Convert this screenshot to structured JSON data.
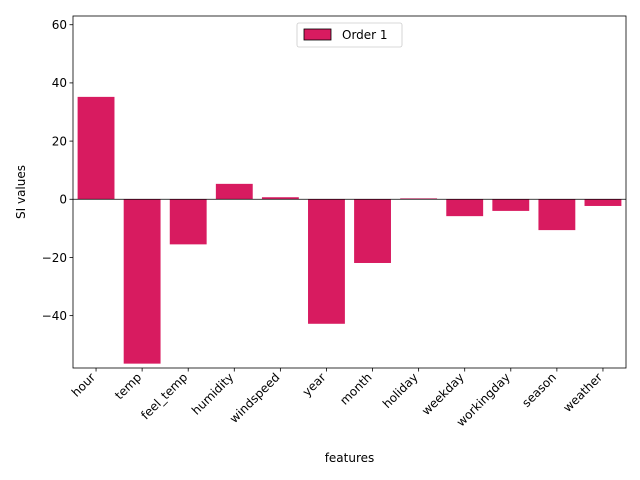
{
  "chart_data": {
    "type": "bar",
    "title": "",
    "xlabel": "features",
    "ylabel": "SI values",
    "categories": [
      "hour",
      "temp",
      "feel_temp",
      "humidity",
      "windspeed",
      "year",
      "month",
      "holiday",
      "weekday",
      "workingday",
      "season",
      "weather"
    ],
    "series": [
      {
        "name": "Order 1",
        "values": [
          35.2,
          -56.5,
          -15.5,
          5.3,
          0.7,
          -42.8,
          -21.9,
          0.3,
          -5.8,
          -4.0,
          -10.6,
          -2.3
        ]
      }
    ],
    "ylim": [
      -58,
      63
    ],
    "yticks": [
      -40,
      -20,
      0,
      20,
      40,
      60
    ],
    "ytick_labels": [
      "−40",
      "−20",
      "0",
      "20",
      "40",
      "60"
    ],
    "grid": false,
    "legend": "top-center",
    "colors": {
      "bar": "#d81b60",
      "zero_line": "#000000"
    }
  }
}
